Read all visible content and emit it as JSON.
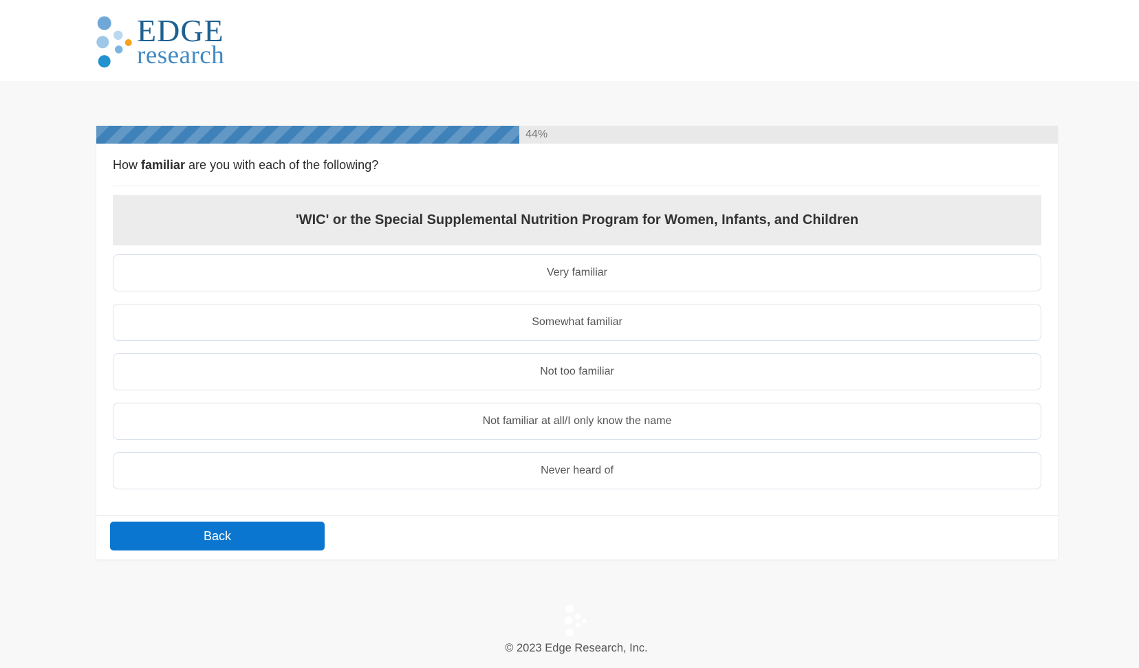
{
  "brand": {
    "name_top": "EDGE",
    "name_bottom": "research"
  },
  "progress": {
    "percent": 44,
    "label": "44%"
  },
  "question": {
    "prefix": "How ",
    "emphasis": "familiar",
    "suffix": " are you with each of the following?",
    "item_header": "'WIC' or the Special Supplemental Nutrition Program for Women, Infants, and Children",
    "options": [
      "Very familiar",
      "Somewhat familiar",
      "Not too familiar",
      "Not familiar at all/I only know the name",
      "Never heard of"
    ]
  },
  "nav": {
    "back_label": "Back"
  },
  "footer": {
    "copyright": "© 2023 Edge Research, Inc."
  },
  "colors": {
    "progress_fill": "#3f81b9",
    "progress_track": "#e9e9e9",
    "button": "#0b76cf",
    "logo_dark_blue": "#1e6091",
    "logo_light_blue": "#4289c4",
    "logo_orange": "#f6a21d",
    "logo_bright_blue": "#2191d0"
  }
}
